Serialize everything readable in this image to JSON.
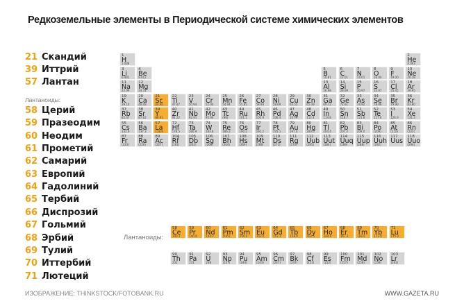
{
  "title": "Редкоземельные элементы в Периодической системе химических элементов",
  "colors": {
    "highlight": "#f5ad32",
    "cell": "#d4d4d4",
    "number": "#f2a10f"
  },
  "rare_earth_top": [
    {
      "num": "21",
      "name": "Скандий"
    },
    {
      "num": "39",
      "name": "Иттрий"
    },
    {
      "num": "57",
      "name": "Лантан"
    }
  ],
  "lanthanides_heading": "Лантаноиды:",
  "rare_earth_lanthanides": [
    {
      "num": "58",
      "name": "Церий"
    },
    {
      "num": "59",
      "name": "Празеодим"
    },
    {
      "num": "60",
      "name": "Неодим"
    },
    {
      "num": "61",
      "name": "Прометий"
    },
    {
      "num": "62",
      "name": "Самарий"
    },
    {
      "num": "63",
      "name": "Европий"
    },
    {
      "num": "64",
      "name": "Гадолиний"
    },
    {
      "num": "65",
      "name": "Тербий"
    },
    {
      "num": "66",
      "name": "Диспрозий"
    },
    {
      "num": "67",
      "name": "Гольмий"
    },
    {
      "num": "68",
      "name": "Эрбий"
    },
    {
      "num": "69",
      "name": "Тулий"
    },
    {
      "num": "70",
      "name": "Иттербий"
    },
    {
      "num": "71",
      "name": "Лютеций"
    }
  ],
  "lanthanides_row_label": "Лантаноиды:",
  "table": {
    "main_rows": [
      [
        [
          "1",
          "H",
          "1.008"
        ],
        null,
        null,
        null,
        null,
        null,
        null,
        null,
        null,
        null,
        null,
        null,
        null,
        null,
        null,
        null,
        null,
        [
          "2",
          "He",
          "4.003"
        ]
      ],
      [
        [
          "3",
          "Li",
          "6.941"
        ],
        [
          "4",
          "Be",
          "9.012"
        ],
        null,
        null,
        null,
        null,
        null,
        null,
        null,
        null,
        null,
        null,
        [
          "5",
          "B",
          "10.81"
        ],
        [
          "6",
          "C",
          "12.01"
        ],
        [
          "7",
          "N",
          "14.01"
        ],
        [
          "8",
          "O",
          "16.00"
        ],
        [
          "9",
          "F",
          "19.00"
        ],
        [
          "10",
          "Ne",
          "20.18"
        ]
      ],
      [
        [
          "11",
          "Na",
          "22.99"
        ],
        [
          "12",
          "Mg",
          "24.31"
        ],
        null,
        null,
        null,
        null,
        null,
        null,
        null,
        null,
        null,
        null,
        [
          "13",
          "Al",
          "26.98"
        ],
        [
          "14",
          "Si",
          "28.09"
        ],
        [
          "15",
          "P",
          "30.97"
        ],
        [
          "16",
          "S",
          "32.07"
        ],
        [
          "17",
          "Cl",
          "35.45"
        ],
        [
          "18",
          "Ar",
          "39.95"
        ]
      ],
      [
        [
          "19",
          "K",
          "39.10"
        ],
        [
          "20",
          "Ca",
          "40.08"
        ],
        [
          "21",
          "Sc",
          "44.96"
        ],
        [
          "22",
          "Ti",
          "47.87"
        ],
        [
          "23",
          "V",
          "50.94"
        ],
        [
          "24",
          "Cr",
          "52.00"
        ],
        [
          "25",
          "Mn",
          "54.94"
        ],
        [
          "26",
          "Fe",
          "55.85"
        ],
        [
          "27",
          "Co",
          "58.93"
        ],
        [
          "28",
          "Ni",
          "58.69"
        ],
        [
          "29",
          "Cu",
          "63.55"
        ],
        [
          "30",
          "Zn",
          "65.39"
        ],
        [
          "31",
          "Ga",
          "69.72"
        ],
        [
          "32",
          "Ge",
          "72.61"
        ],
        [
          "33",
          "As",
          "74.92"
        ],
        [
          "34",
          "Se",
          "78.96"
        ],
        [
          "35",
          "Br",
          "79.90"
        ],
        [
          "36",
          "Kr",
          "83.80"
        ]
      ],
      [
        [
          "37",
          "Rb",
          "85.47"
        ],
        [
          "38",
          "Sr",
          "87.62"
        ],
        [
          "39",
          "Y",
          "88.91"
        ],
        [
          "40",
          "Zr",
          "91.22"
        ],
        [
          "41",
          "Nb",
          "92.91"
        ],
        [
          "42",
          "Mo",
          "95.94"
        ],
        [
          "43",
          "Tc",
          "(98)"
        ],
        [
          "44",
          "Ru",
          "101.1"
        ],
        [
          "45",
          "Rh",
          "102.9"
        ],
        [
          "46",
          "Pd",
          "106.4"
        ],
        [
          "47",
          "Ag",
          "107.9"
        ],
        [
          "48",
          "Cd",
          "112.4"
        ],
        [
          "49",
          "In",
          "114.8"
        ],
        [
          "50",
          "Sn",
          "118.7"
        ],
        [
          "51",
          "Sb",
          "121.8"
        ],
        [
          "52",
          "Te",
          "127.6"
        ],
        [
          "53",
          "I",
          "126.9"
        ],
        [
          "54",
          "Xe",
          "131.3"
        ]
      ],
      [
        [
          "55",
          "Cs",
          "132.9"
        ],
        [
          "56",
          "Ba",
          "137.3"
        ],
        [
          "57",
          "La",
          "138.9"
        ],
        [
          "72",
          "Hf",
          "178.5"
        ],
        [
          "73",
          "Ta",
          "180.9"
        ],
        [
          "74",
          "W",
          "183.8"
        ],
        [
          "75",
          "Re",
          "186.2"
        ],
        [
          "76",
          "Os",
          "190.2"
        ],
        [
          "77",
          "Ir",
          "192.2"
        ],
        [
          "78",
          "Pt",
          "195.1"
        ],
        [
          "79",
          "Au",
          "197.0"
        ],
        [
          "80",
          "Hg",
          "200.6"
        ],
        [
          "81",
          "Tl",
          "204.4"
        ],
        [
          "82",
          "Pb",
          "207.2"
        ],
        [
          "83",
          "Bi",
          "209.0"
        ],
        [
          "84",
          "Po",
          "(209)"
        ],
        [
          "85",
          "At",
          "(210)"
        ],
        [
          "86",
          "Rn",
          "(222)"
        ]
      ],
      [
        [
          "87",
          "Fr",
          "(223)"
        ],
        [
          "88",
          "Ra",
          "(226)"
        ],
        [
          "89",
          "Ac",
          "(227)"
        ],
        [
          "104",
          "Rf",
          "(261)"
        ],
        [
          "105",
          "Db",
          "(262)"
        ],
        [
          "106",
          "Sg",
          "(266)"
        ],
        [
          "107",
          "Bh",
          "(264)"
        ],
        [
          "108",
          "Hs",
          "(269)"
        ],
        [
          "109",
          "Mt",
          "(268)"
        ],
        [
          "110",
          "Ds",
          "(271)"
        ],
        [
          "111",
          "Rg",
          "(272)"
        ],
        [
          "112",
          "Uub",
          "(285)"
        ],
        [
          "113",
          "Uut",
          "(284)"
        ],
        [
          "114",
          "Uuq",
          "(289)"
        ],
        [
          "115",
          "Uup",
          "(288)"
        ],
        [
          "116",
          "Uuh",
          "(292)"
        ],
        [
          "117",
          "Uus",
          ""
        ],
        [
          "118",
          "Uuo",
          "(294)"
        ]
      ]
    ],
    "lanthanides": [
      [
        "58",
        "Ce",
        "140.1"
      ],
      [
        "59",
        "Pr",
        "140.9"
      ],
      [
        "60",
        "Nd",
        "144.2"
      ],
      [
        "61",
        "Pm",
        "(145)"
      ],
      [
        "62",
        "Sm",
        "150.4"
      ],
      [
        "63",
        "Eu",
        "152.0"
      ],
      [
        "64",
        "Gd",
        "157.3"
      ],
      [
        "65",
        "Tb",
        "158.9"
      ],
      [
        "66",
        "Dy",
        "162.5"
      ],
      [
        "67",
        "Ho",
        "164.9"
      ],
      [
        "68",
        "Er",
        "167.3"
      ],
      [
        "69",
        "Tm",
        "168.9"
      ],
      [
        "70",
        "Yb",
        "173.0"
      ],
      [
        "71",
        "Lu",
        "175.0"
      ]
    ],
    "actinides": [
      [
        "90",
        "Th",
        "232"
      ],
      [
        "91",
        "Pa",
        "231"
      ],
      [
        "92",
        "U",
        "238"
      ],
      [
        "93",
        "Np",
        "(237)"
      ],
      [
        "94",
        "Pu",
        "(244)"
      ],
      [
        "95",
        "Am",
        "(243)"
      ],
      [
        "96",
        "Cm",
        "(247)"
      ],
      [
        "97",
        "Bk",
        "(247)"
      ],
      [
        "98",
        "Cf",
        "(251)"
      ],
      [
        "99",
        "Es",
        "(252)"
      ],
      [
        "100",
        "Fm",
        "(257)"
      ],
      [
        "101",
        "Md",
        "(258)"
      ],
      [
        "102",
        "No",
        "(259)"
      ],
      [
        "103",
        "Lr",
        "(262)"
      ]
    ],
    "highlighted": [
      "21",
      "39",
      "57",
      "58",
      "59",
      "60",
      "61",
      "62",
      "63",
      "64",
      "65",
      "66",
      "67",
      "68",
      "69",
      "70",
      "71"
    ]
  },
  "footer": {
    "credit": "ИЗОБРАЖЕНИЕ: THINKSTOCK/FOTOBANK.RU",
    "site": "WWW.GAZETA.RU"
  }
}
